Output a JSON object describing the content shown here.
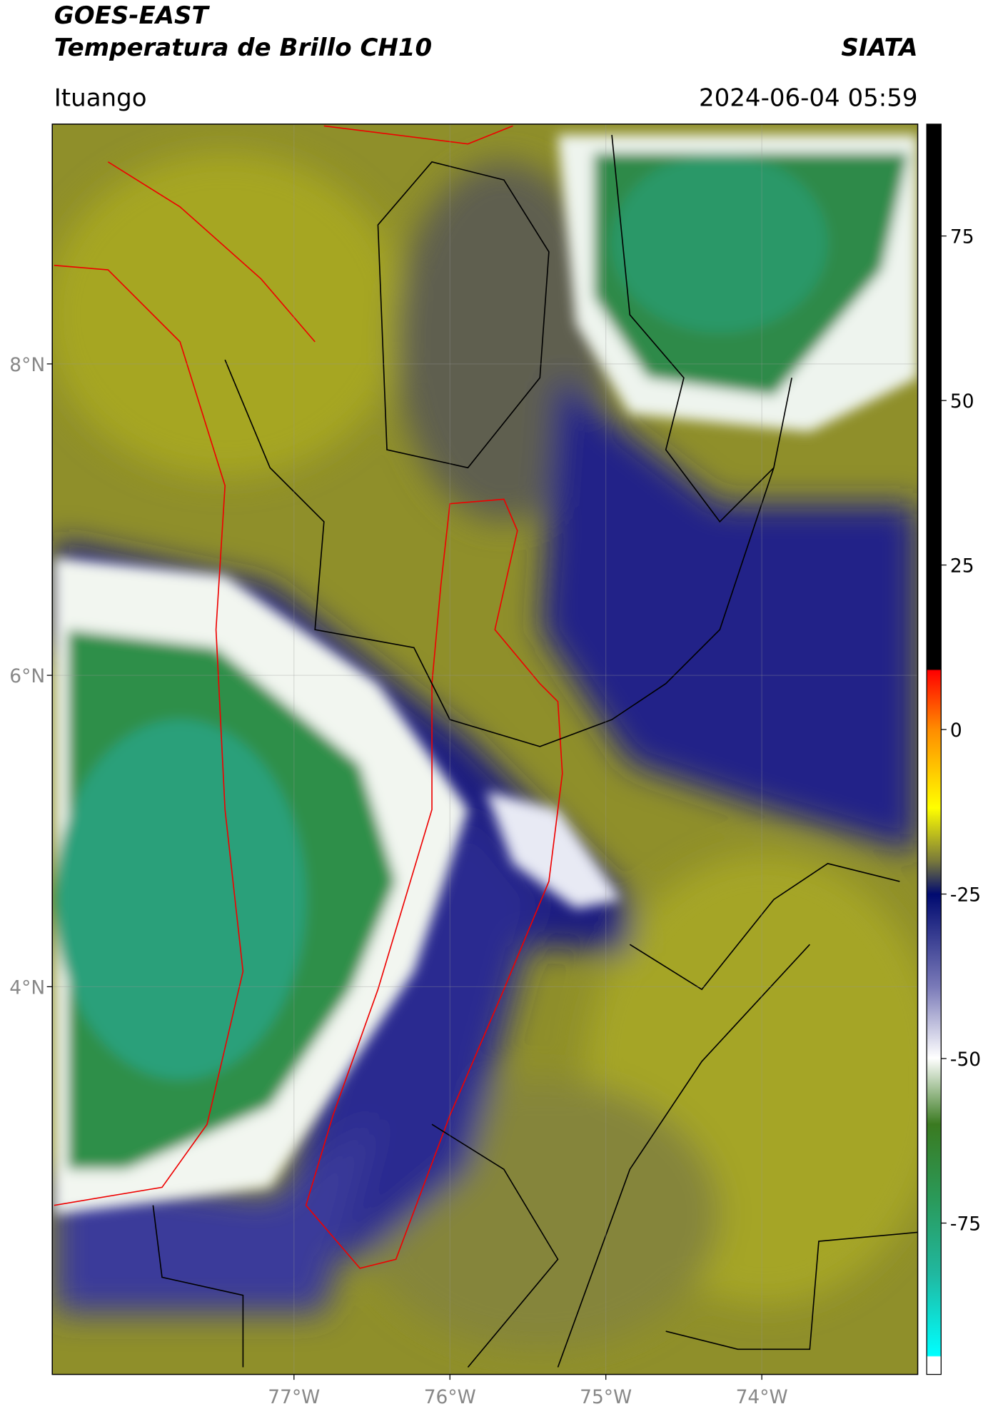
{
  "header": {
    "title": "GOES-EAST",
    "subtitle": "Temperatura de Brillo CH10",
    "source": "SIATA",
    "location": "Ituango",
    "datetime": "2024-06-04 05:59"
  },
  "map": {
    "xlim": [
      -78.55,
      -73.0
    ],
    "ylim": [
      1.51,
      9.54
    ],
    "xticks": [
      {
        "value": -77,
        "label": "77°W"
      },
      {
        "value": -76,
        "label": "76°W"
      },
      {
        "value": -75,
        "label": "75°W"
      },
      {
        "value": -74,
        "label": "74°W"
      }
    ],
    "yticks": [
      {
        "value": 8,
        "label": "8°N"
      },
      {
        "value": 6,
        "label": "6°N"
      },
      {
        "value": 4,
        "label": "4°N"
      }
    ],
    "grid": true
  },
  "colorbar": {
    "lim": [
      -98,
      92
    ],
    "ticks": [
      75,
      50,
      25,
      0,
      -25,
      -50,
      -75
    ]
  }
}
